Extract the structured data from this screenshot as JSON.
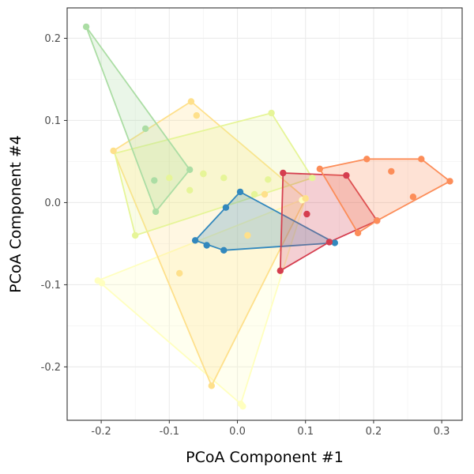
{
  "chart_data": {
    "type": "scatter",
    "xlabel": "PCoA Component #1",
    "ylabel": "PCoA Component #4",
    "xlim": [
      -0.25,
      0.33
    ],
    "ylim": [
      -0.265,
      0.237
    ],
    "x_ticks": [
      -0.2,
      -0.1,
      0.0,
      0.1,
      0.2,
      0.3
    ],
    "x_tick_labels": [
      "-0.2",
      "-0.1",
      "0.0",
      "0.1",
      "0.2",
      "0.3"
    ],
    "y_ticks": [
      -0.2,
      -0.1,
      0.0,
      0.1,
      0.2
    ],
    "y_tick_labels": [
      "-0.2",
      "-0.1",
      "0.0",
      "0.1",
      "0.2"
    ],
    "grid": true,
    "legend": "none",
    "series": [
      {
        "color": "#FFFFBF",
        "points": [
          [
            -0.205,
            -0.095
          ],
          [
            -0.199,
            -0.098
          ],
          [
            0.005,
            -0.245
          ],
          [
            0.008,
            -0.248
          ],
          [
            0.1,
            0.005
          ],
          [
            0.095,
            0.003
          ]
        ],
        "hull": [
          [
            -0.205,
            -0.095
          ],
          [
            0.005,
            -0.245
          ],
          [
            0.1,
            0.005
          ]
        ]
      },
      {
        "color": "#FEE08B",
        "points": [
          [
            -0.182,
            0.063
          ],
          [
            -0.068,
            0.123
          ],
          [
            -0.06,
            0.106
          ],
          [
            -0.085,
            -0.086
          ],
          [
            -0.038,
            -0.223
          ],
          [
            0.015,
            -0.04
          ],
          [
            0.1,
            0.005
          ],
          [
            0.04,
            0.01
          ],
          [
            -0.05,
            0.035
          ]
        ],
        "hull": [
          [
            -0.182,
            0.063
          ],
          [
            -0.068,
            0.123
          ],
          [
            0.1,
            0.005
          ],
          [
            -0.038,
            -0.223
          ]
        ]
      },
      {
        "color": "#E6F598",
        "points": [
          [
            -0.15,
            -0.04
          ],
          [
            0.05,
            0.109
          ],
          [
            0.11,
            0.03
          ],
          [
            -0.05,
            0.035
          ],
          [
            -0.02,
            0.03
          ],
          [
            0.045,
            0.028
          ],
          [
            0.025,
            0.01
          ],
          [
            -0.07,
            0.015
          ],
          [
            -0.1,
            0.03
          ]
        ],
        "hull": [
          [
            -0.18,
            0.06
          ],
          [
            0.05,
            0.109
          ],
          [
            0.11,
            0.03
          ],
          [
            -0.15,
            -0.04
          ]
        ]
      },
      {
        "color": "#ABDDA4",
        "points": [
          [
            -0.222,
            0.214
          ],
          [
            -0.135,
            0.09
          ],
          [
            -0.07,
            0.04
          ],
          [
            -0.122,
            0.027
          ],
          [
            -0.12,
            -0.011
          ]
        ],
        "hull": [
          [
            -0.222,
            0.214
          ],
          [
            -0.07,
            0.04
          ],
          [
            -0.12,
            -0.011
          ]
        ]
      },
      {
        "color": "#3288BD",
        "points": [
          [
            0.004,
            0.013
          ],
          [
            -0.017,
            -0.006
          ],
          [
            -0.062,
            -0.046
          ],
          [
            -0.045,
            -0.052
          ],
          [
            -0.02,
            -0.058
          ],
          [
            0.143,
            -0.049
          ],
          [
            0.135,
            -0.048
          ]
        ],
        "hull": [
          [
            0.004,
            0.013
          ],
          [
            0.143,
            -0.049
          ],
          [
            -0.02,
            -0.058
          ],
          [
            -0.062,
            -0.046
          ]
        ]
      },
      {
        "color": "#D53E4F",
        "points": [
          [
            0.067,
            0.036
          ],
          [
            0.16,
            0.033
          ],
          [
            0.205,
            -0.022
          ],
          [
            0.135,
            -0.048
          ],
          [
            0.063,
            -0.083
          ],
          [
            0.102,
            -0.014
          ]
        ],
        "hull": [
          [
            0.067,
            0.036
          ],
          [
            0.16,
            0.033
          ],
          [
            0.205,
            -0.022
          ],
          [
            0.135,
            -0.048
          ],
          [
            0.063,
            -0.083
          ]
        ]
      },
      {
        "color": "#FC8D59",
        "points": [
          [
            0.121,
            0.041
          ],
          [
            0.19,
            0.053
          ],
          [
            0.27,
            0.053
          ],
          [
            0.312,
            0.026
          ],
          [
            0.226,
            0.038
          ],
          [
            0.258,
            0.007
          ],
          [
            0.177,
            -0.037
          ],
          [
            0.205,
            -0.022
          ]
        ],
        "hull": [
          [
            0.121,
            0.041
          ],
          [
            0.19,
            0.053
          ],
          [
            0.27,
            0.053
          ],
          [
            0.312,
            0.026
          ],
          [
            0.205,
            -0.022
          ],
          [
            0.177,
            -0.037
          ]
        ]
      }
    ]
  }
}
